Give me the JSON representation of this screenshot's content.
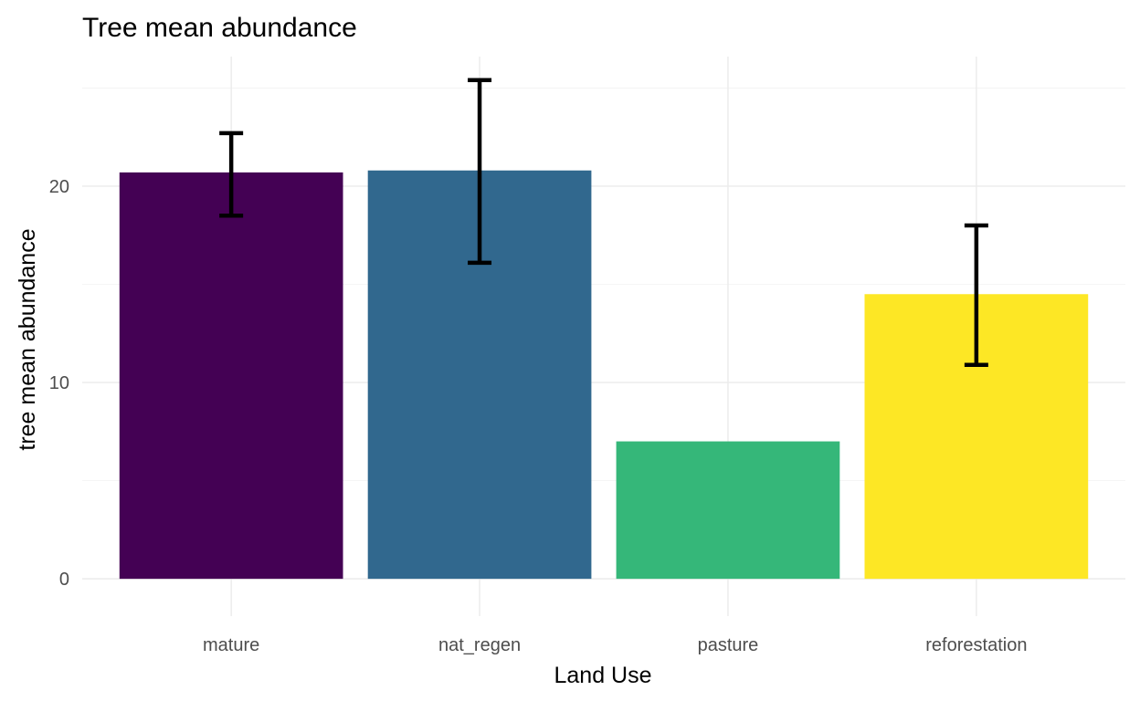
{
  "chart_data": {
    "type": "bar",
    "title": "Tree mean abundance",
    "xlabel": "Land Use",
    "ylabel": "tree mean abundance",
    "categories": [
      "mature",
      "nat_regen",
      "pasture",
      "reforestation"
    ],
    "values": [
      20.7,
      20.8,
      7.0,
      14.5
    ],
    "error_low": [
      18.5,
      16.1,
      null,
      10.9
    ],
    "error_high": [
      22.7,
      25.4,
      null,
      18.0
    ],
    "colors": [
      "#440154",
      "#31688e",
      "#35b779",
      "#fde725"
    ],
    "ylim": [
      -1.9,
      26.6
    ],
    "yticks": [
      0,
      10,
      20
    ],
    "grid": true,
    "legend": "none"
  }
}
